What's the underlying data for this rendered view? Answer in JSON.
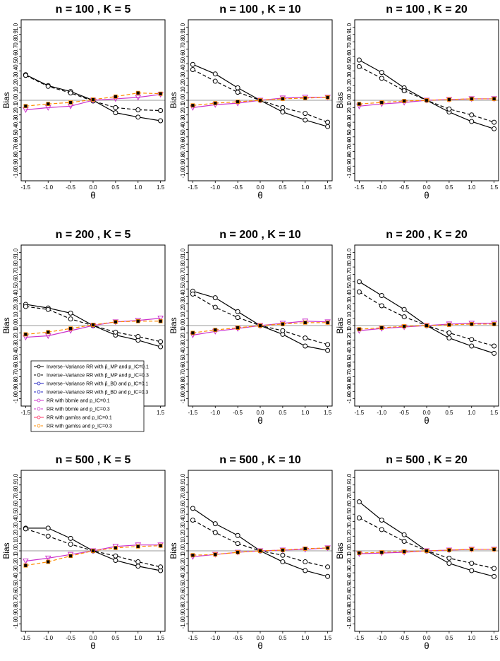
{
  "figure": {
    "ylabel": "Bias",
    "xlabel": "θ",
    "yticks": [
      -1.0,
      -0.9,
      -0.8,
      -0.7,
      -0.6,
      -0.5,
      -0.4,
      -0.3,
      -0.2,
      -0.1,
      0.0,
      0.1,
      0.2,
      0.3,
      0.4,
      0.5,
      0.6,
      0.7,
      0.8,
      0.9,
      1.0
    ],
    "xticks": [
      -1.5,
      -1.0,
      -0.5,
      0.0,
      0.5,
      1.0,
      1.5
    ],
    "legend": [
      {
        "label": "Inverse−Variance RR with p̂_MP and p_IC=0.1",
        "color": "#000000",
        "dash": "solid",
        "marker": "circle-x"
      },
      {
        "label": "Inverse−Variance RR with p̂_MP and p_IC=0.3",
        "color": "#000000",
        "dash": "dashed",
        "marker": "circle-x"
      },
      {
        "label": "Inverse−Variance RR with p̂_BD and p_IC=0.1",
        "color": "#2020c0",
        "dash": "solid",
        "marker": "x"
      },
      {
        "label": "Inverse−Variance RR with p̂_BD and p_IC=0.3",
        "color": "#2020c0",
        "dash": "dashed",
        "marker": "x"
      },
      {
        "label": "RR with bbmle and p_IC=0.1",
        "color": "#cc33cc",
        "dash": "solid",
        "marker": "triangle-down"
      },
      {
        "label": "RR with bbmle and p_IC=0.3",
        "color": "#cc33cc",
        "dash": "dashed",
        "marker": "triangle-down-open"
      },
      {
        "label": "RR with gamlss and p_IC=0.1",
        "color": "#ff3366",
        "dash": "solid",
        "marker": "star"
      },
      {
        "label": "RR with gamlss and p_IC=0.3",
        "color": "#ff8c00",
        "dash": "dashed",
        "marker": "square"
      }
    ]
  },
  "chart_data": [
    {
      "type": "line",
      "title": "n = 100 , K = 5",
      "x": [
        -1.5,
        -1.0,
        -0.5,
        0.0,
        0.5,
        1.0,
        1.5
      ],
      "ylim": [
        -1,
        1
      ],
      "series": [
        {
          "name": "IVMP01",
          "values": [
            0.35,
            0.2,
            0.12,
            0.0,
            -0.17,
            -0.23,
            -0.28
          ]
        },
        {
          "name": "IVMP03",
          "values": [
            0.34,
            0.19,
            0.1,
            -0.01,
            -0.1,
            -0.13,
            -0.14
          ]
        },
        {
          "name": "BB01",
          "values": [
            -0.13,
            -0.1,
            -0.08,
            0.0,
            0.02,
            0.04,
            0.08
          ]
        },
        {
          "name": "GAM03",
          "values": [
            -0.08,
            -0.05,
            -0.03,
            0.01,
            0.05,
            0.1,
            0.09
          ]
        }
      ]
    },
    {
      "type": "line",
      "title": "n = 100 , K = 10",
      "x": [
        -1.5,
        -1.0,
        -0.5,
        0.0,
        0.5,
        1.0,
        1.5
      ],
      "ylim": [
        -1,
        1
      ],
      "series": [
        {
          "name": "IVMP01",
          "values": [
            0.49,
            0.36,
            0.17,
            0.0,
            -0.16,
            -0.27,
            -0.36
          ]
        },
        {
          "name": "IVMP03",
          "values": [
            0.42,
            0.26,
            0.11,
            0.0,
            -0.1,
            -0.18,
            -0.3
          ]
        },
        {
          "name": "BB01",
          "values": [
            -0.1,
            -0.06,
            -0.04,
            0.0,
            0.03,
            0.04,
            0.04
          ]
        },
        {
          "name": "GAM03",
          "values": [
            -0.07,
            -0.04,
            -0.02,
            0.0,
            0.02,
            0.03,
            0.04
          ]
        }
      ]
    },
    {
      "type": "line",
      "title": "n = 100 , K = 20",
      "x": [
        -1.5,
        -1.0,
        -0.5,
        0.0,
        0.5,
        1.0,
        1.5
      ],
      "ylim": [
        -1,
        1
      ],
      "series": [
        {
          "name": "IVMP01",
          "values": [
            0.55,
            0.38,
            0.17,
            0.0,
            -0.16,
            -0.29,
            -0.39
          ]
        },
        {
          "name": "IVMP03",
          "values": [
            0.46,
            0.3,
            0.13,
            0.0,
            -0.12,
            -0.2,
            -0.3
          ]
        },
        {
          "name": "BB01",
          "values": [
            -0.08,
            -0.05,
            -0.03,
            0.0,
            0.01,
            0.02,
            0.02
          ]
        },
        {
          "name": "GAM03",
          "values": [
            -0.05,
            -0.03,
            -0.01,
            0.0,
            0.01,
            0.02,
            0.02
          ]
        }
      ]
    },
    {
      "type": "line",
      "title": "n = 200 , K = 5",
      "x": [
        -1.5,
        -1.0,
        -0.5,
        0.0,
        0.5,
        1.0,
        1.5
      ],
      "ylim": [
        -1,
        1
      ],
      "series": [
        {
          "name": "IVMP01",
          "values": [
            0.29,
            0.24,
            0.17,
            0.0,
            -0.13,
            -0.2,
            -0.29
          ]
        },
        {
          "name": "IVMP03",
          "values": [
            0.26,
            0.22,
            0.09,
            0.0,
            -0.09,
            -0.15,
            -0.22
          ]
        },
        {
          "name": "BB01",
          "values": [
            -0.16,
            -0.14,
            -0.07,
            0.0,
            0.05,
            0.07,
            0.1
          ]
        },
        {
          "name": "GAM03",
          "values": [
            -0.12,
            -0.09,
            -0.04,
            0.01,
            0.05,
            0.06,
            0.06
          ]
        }
      ]
    },
    {
      "type": "line",
      "title": "n = 200 , K = 10",
      "x": [
        -1.5,
        -1.0,
        -0.5,
        0.0,
        0.5,
        1.0,
        1.5
      ],
      "ylim": [
        -1,
        1
      ],
      "series": [
        {
          "name": "IVMP01",
          "values": [
            0.47,
            0.38,
            0.19,
            0.0,
            -0.12,
            -0.28,
            -0.34
          ]
        },
        {
          "name": "IVMP03",
          "values": [
            0.43,
            0.25,
            0.11,
            0.0,
            -0.07,
            -0.17,
            -0.26
          ]
        },
        {
          "name": "BB01",
          "values": [
            -0.13,
            -0.08,
            -0.04,
            0.0,
            0.03,
            0.06,
            0.05
          ]
        },
        {
          "name": "GAM03",
          "values": [
            -0.1,
            -0.06,
            -0.03,
            0.0,
            0.02,
            0.04,
            0.04
          ]
        }
      ]
    },
    {
      "type": "line",
      "title": "n = 200 , K = 20",
      "x": [
        -1.5,
        -1.0,
        -0.5,
        0.0,
        0.5,
        1.0,
        1.5
      ],
      "ylim": [
        -1,
        1
      ],
      "series": [
        {
          "name": "IVMP01",
          "values": [
            0.6,
            0.41,
            0.22,
            0.0,
            -0.17,
            -0.28,
            -0.38
          ]
        },
        {
          "name": "IVMP03",
          "values": [
            0.46,
            0.27,
            0.12,
            0.0,
            -0.1,
            -0.19,
            -0.28
          ]
        },
        {
          "name": "BB01",
          "values": [
            -0.07,
            -0.04,
            -0.02,
            0.0,
            0.02,
            0.03,
            0.03
          ]
        },
        {
          "name": "GAM03",
          "values": [
            -0.05,
            -0.03,
            -0.01,
            0.0,
            0.01,
            0.02,
            0.02
          ]
        }
      ]
    },
    {
      "type": "line",
      "title": "n = 500 , K = 5",
      "x": [
        -1.5,
        -1.0,
        -0.5,
        0.0,
        0.5,
        1.0,
        1.5
      ],
      "ylim": [
        -1,
        1
      ],
      "series": [
        {
          "name": "IVMP01",
          "values": [
            0.31,
            0.31,
            0.17,
            0.0,
            -0.13,
            -0.21,
            -0.27
          ]
        },
        {
          "name": "IVMP03",
          "values": [
            0.3,
            0.2,
            0.09,
            0.0,
            -0.07,
            -0.15,
            -0.22
          ]
        },
        {
          "name": "BB01",
          "values": [
            -0.14,
            -0.1,
            -0.05,
            0.0,
            0.06,
            0.08,
            0.08
          ]
        },
        {
          "name": "GAM03",
          "values": [
            -0.2,
            -0.15,
            -0.07,
            0.0,
            0.04,
            0.06,
            0.07
          ]
        }
      ]
    },
    {
      "type": "line",
      "title": "n = 500 , K = 10",
      "x": [
        -1.5,
        -1.0,
        -0.5,
        0.0,
        0.5,
        1.0,
        1.5
      ],
      "ylim": [
        -1,
        1
      ],
      "series": [
        {
          "name": "IVMP01",
          "values": [
            0.58,
            0.37,
            0.21,
            0.0,
            -0.15,
            -0.27,
            -0.35
          ]
        },
        {
          "name": "IVMP03",
          "values": [
            0.42,
            0.25,
            0.1,
            0.0,
            -0.06,
            -0.15,
            -0.22
          ]
        },
        {
          "name": "BB01",
          "values": [
            -0.08,
            -0.05,
            -0.02,
            0.0,
            0.01,
            0.02,
            0.04
          ]
        },
        {
          "name": "GAM03",
          "values": [
            -0.06,
            -0.05,
            -0.02,
            0.0,
            0.01,
            0.03,
            0.04
          ]
        }
      ]
    },
    {
      "type": "line",
      "title": "n = 500 , K = 20",
      "x": [
        -1.5,
        -1.0,
        -0.5,
        0.0,
        0.5,
        1.0,
        1.5
      ],
      "ylim": [
        -1,
        1
      ],
      "series": [
        {
          "name": "IVMP01",
          "values": [
            0.67,
            0.42,
            0.22,
            0.0,
            -0.17,
            -0.27,
            -0.35
          ]
        },
        {
          "name": "IVMP03",
          "values": [
            0.45,
            0.29,
            0.13,
            0.0,
            -0.1,
            -0.17,
            -0.24
          ]
        },
        {
          "name": "BB01",
          "values": [
            -0.04,
            -0.03,
            -0.02,
            0.0,
            0.01,
            0.02,
            0.02
          ]
        },
        {
          "name": "GAM03",
          "values": [
            -0.03,
            -0.02,
            -0.01,
            0.0,
            0.01,
            0.02,
            0.02
          ]
        }
      ]
    }
  ]
}
